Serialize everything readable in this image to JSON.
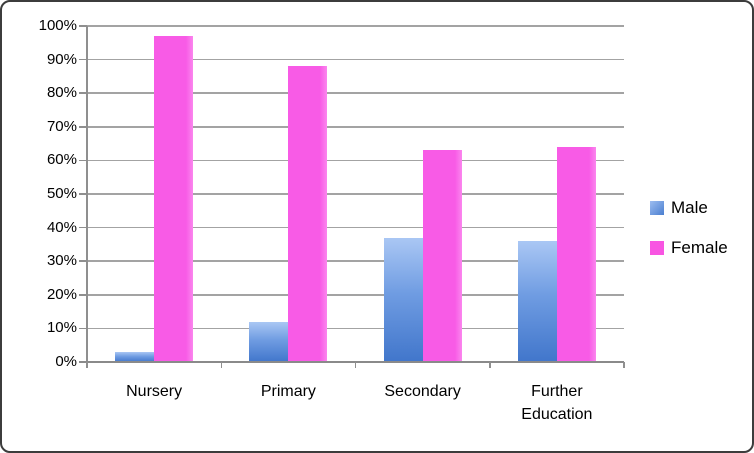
{
  "chart_data": {
    "type": "bar",
    "title": "",
    "xlabel": "",
    "ylabel": "",
    "categories": [
      "Nursery",
      "Primary",
      "Secondary",
      "Further Education"
    ],
    "series": [
      {
        "name": "Male",
        "values": [
          3,
          12,
          37,
          36
        ],
        "color_top": "#AAC7F4",
        "color_bottom": "#4176CB"
      },
      {
        "name": "Female",
        "values": [
          97,
          88,
          63,
          64
        ],
        "color": "#F85BE6"
      }
    ],
    "ylim": [
      0,
      100
    ],
    "ytick_step": 10,
    "ytick_labels": [
      "0%",
      "10%",
      "20%",
      "30%",
      "40%",
      "50%",
      "60%",
      "70%",
      "80%",
      "90%",
      "100%"
    ],
    "grid": true,
    "legend_position": "right",
    "colors": {
      "gridline": "#A3A3A3",
      "axis": "#8A8A8A",
      "border": "#3C3C3C",
      "background": "#FFFFFF",
      "text": "#000000"
    }
  }
}
